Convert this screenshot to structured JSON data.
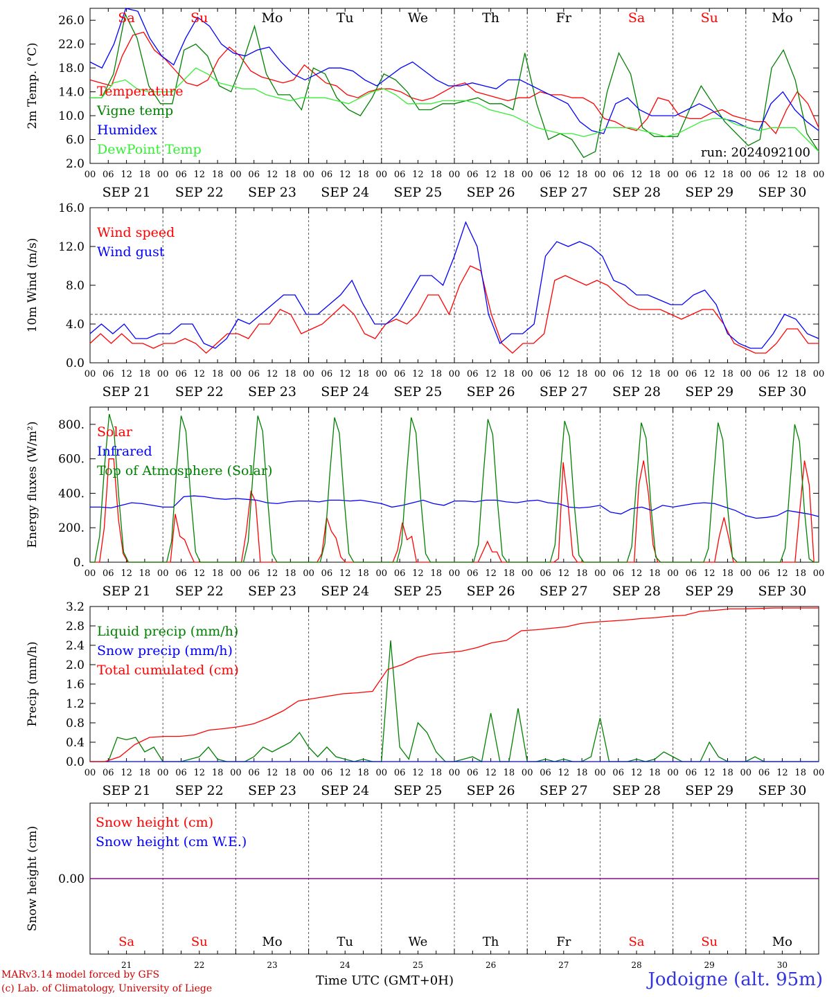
{
  "day_labels": [
    "SEP 21",
    "SEP 22",
    "SEP 23",
    "SEP 24",
    "SEP 25",
    "SEP 26",
    "SEP 27",
    "SEP 28",
    "SEP 29",
    "SEP 30"
  ],
  "weekdays": [
    "Sa",
    "Su",
    "Mo",
    "Tu",
    "We",
    "Th",
    "Fr",
    "Sa",
    "Su",
    "Mo"
  ],
  "weekend_flags": [
    true,
    true,
    false,
    false,
    false,
    false,
    false,
    true,
    true,
    false
  ],
  "day_numbers": [
    "21",
    "22",
    "23",
    "24",
    "25",
    "26",
    "27",
    "28",
    "29",
    "30"
  ],
  "hour_ticks": [
    "00",
    "06",
    "12",
    "18"
  ],
  "hour_end": "00",
  "xlabel": "Time UTC (GMT+0H)",
  "credits": [
    "MARv3.14 model forced by GFS",
    "(c) Lab. of Climatology, University of Liege"
  ],
  "station": "Jodoigne (alt. 95m)",
  "colors": {
    "red": "#ff0000",
    "green": "#008000",
    "blue": "#0000ff",
    "lightgreen": "#33ee33",
    "purple": "#800080",
    "grid": "#555555"
  },
  "chart_data": [
    {
      "type": "line",
      "id": "temp",
      "ylabel": "2m Temp. (°C)",
      "ylim": [
        2,
        28
      ],
      "yticks": [
        "2.0",
        "6.0",
        "10.0",
        "14.0",
        "18.0",
        "22.0",
        "26.0"
      ],
      "annotation": "run: 2024092100",
      "x_hours": "0..240 step 6",
      "series": [
        {
          "name": "Temperature",
          "color": "red",
          "values": [
            16,
            15.5,
            15,
            20,
            23.5,
            24,
            21,
            19.5,
            17.5,
            15.5,
            15,
            16,
            19.5,
            21.5,
            20,
            17.5,
            16.5,
            16,
            15.5,
            16,
            18.5,
            17,
            15.5,
            15,
            13.5,
            13,
            14,
            14.5,
            14.5,
            14,
            13,
            12.5,
            13,
            14,
            15,
            15.5,
            14,
            13.5,
            13,
            12.5,
            13,
            13,
            14,
            13.5,
            13.5,
            13,
            13,
            12,
            9.5,
            9,
            8,
            7.5,
            9.5,
            13,
            12.5,
            10,
            9.5,
            9.5,
            10.5,
            11,
            10,
            9.5,
            9,
            9,
            7,
            11,
            14,
            12,
            8
          ]
        },
        {
          "name": "Vigne temp",
          "color": "green",
          "values": [
            13,
            13,
            17,
            27,
            23,
            15,
            12,
            12,
            21,
            22,
            20,
            15,
            14,
            19,
            25,
            17,
            13.5,
            13.5,
            11,
            18,
            17,
            13,
            11,
            10,
            13,
            17,
            16,
            14,
            11,
            11,
            12,
            12,
            12.5,
            13,
            12,
            12,
            11,
            20.5,
            12,
            6,
            7,
            6,
            3,
            4,
            14,
            20.5,
            17,
            8,
            6.5,
            6.5,
            6.5,
            11,
            15,
            12,
            9,
            7,
            5,
            6,
            18,
            21,
            16,
            7,
            4
          ]
        },
        {
          "name": "Humidex",
          "color": "blue",
          "values": [
            19,
            18,
            22,
            28,
            27.5,
            23,
            20,
            18.5,
            23,
            26.5,
            25,
            22,
            20.5,
            20,
            21,
            21.5,
            19,
            17,
            16,
            17,
            18,
            18,
            17.5,
            16,
            15,
            16.5,
            18,
            19,
            17.5,
            16,
            15,
            15,
            15.5,
            15,
            14.5,
            16,
            16,
            15,
            14,
            13,
            12,
            9,
            7.5,
            7,
            12,
            13,
            11,
            10,
            10,
            10,
            11,
            12,
            11,
            9.5,
            9,
            8,
            7.5,
            12,
            14,
            11,
            9,
            7.5
          ]
        },
        {
          "name": "DewPoint Temp",
          "color": "lightgreen",
          "values": [
            13,
            13,
            15.5,
            16,
            14.5,
            14,
            14,
            14,
            16,
            18,
            17,
            15.5,
            15,
            14.5,
            14.5,
            13.5,
            13,
            12.5,
            13,
            13,
            13,
            12.5,
            12,
            13,
            14,
            14.5,
            13.5,
            12,
            12,
            12,
            12.5,
            12.5,
            12.5,
            12,
            11,
            10.5,
            10,
            9,
            8,
            7.5,
            7,
            7,
            6.5,
            7,
            8,
            8,
            8,
            7.5,
            7,
            6.5,
            7,
            8,
            9,
            9.5,
            9.5,
            8.5,
            8,
            7.5,
            8,
            8,
            8,
            6,
            4
          ]
        }
      ]
    },
    {
      "type": "line",
      "id": "wind",
      "ylabel": "10m Wind (m/s)",
      "ylim": [
        0,
        16
      ],
      "yticks": [
        "0.0",
        "4.0",
        "8.0",
        "12.0",
        "16.0"
      ],
      "reference_line": 5,
      "x_hours": "0..240 step 6",
      "series": [
        {
          "name": "Wind speed",
          "color": "red",
          "values": [
            2,
            3,
            2,
            3,
            2,
            2,
            1.5,
            2,
            2,
            2.5,
            2,
            1,
            2,
            3,
            3,
            2.5,
            4,
            4,
            5.5,
            5,
            3,
            3.5,
            4,
            5,
            6,
            5,
            3,
            2.5,
            4,
            4.5,
            4,
            5,
            7,
            7,
            5,
            8,
            10,
            9.5,
            5,
            2,
            1,
            2,
            2,
            3,
            8.5,
            9,
            8.5,
            8,
            8.5,
            8,
            7,
            6,
            5.5,
            5.5,
            5.5,
            5,
            4.5,
            5,
            5.5,
            5.5,
            4,
            2,
            1.5,
            1,
            1,
            2,
            3.5,
            3.5,
            2,
            2
          ]
        },
        {
          "name": "Wind gust",
          "color": "blue",
          "values": [
            3,
            4,
            3,
            4,
            2.5,
            2.5,
            3,
            3,
            4,
            4,
            2,
            1.5,
            2.5,
            4.5,
            4,
            5,
            6,
            7,
            7,
            5,
            5,
            6,
            7,
            8.5,
            6,
            4,
            4,
            5,
            7,
            9,
            9,
            8,
            11,
            14.5,
            12,
            5,
            2,
            3,
            3,
            4,
            11,
            12.5,
            12,
            12.5,
            12,
            11,
            8.5,
            8,
            7,
            7,
            6.5,
            6,
            6,
            7,
            7.5,
            6,
            3,
            2,
            1.5,
            1.5,
            3,
            5,
            4.5,
            3,
            2.5
          ]
        }
      ]
    },
    {
      "type": "line",
      "id": "energy",
      "ylabel": "Energy fluxes (W/m²)",
      "ylim": [
        0,
        900
      ],
      "yticks": [
        "0.",
        "200.",
        "400.",
        "600.",
        "800."
      ],
      "x_hours": "0..240 step 3",
      "series": [
        {
          "name": "Solar",
          "color": "red",
          "values": [
            0,
            0,
            0,
            200,
            600,
            600,
            250,
            50,
            0,
            0,
            0,
            0,
            0,
            0,
            0,
            0,
            0,
            0,
            280,
            150,
            130,
            60,
            0,
            0,
            0,
            0,
            0,
            0,
            0,
            0,
            0,
            0,
            0,
            170,
            410,
            350,
            0,
            0,
            0,
            0,
            0,
            0,
            0,
            0,
            0,
            0,
            0,
            0,
            0,
            50,
            260,
            180,
            140,
            30,
            0,
            0,
            0,
            0,
            0,
            0,
            0,
            0,
            0,
            0,
            0,
            70,
            230,
            130,
            150,
            0,
            0,
            0,
            0,
            0,
            0,
            0,
            0,
            0,
            0,
            0,
            0,
            0,
            0,
            60,
            120,
            60,
            60,
            0,
            0,
            0,
            0,
            0,
            0,
            0,
            0,
            0,
            0,
            0,
            0,
            20,
            580,
            350,
            40,
            0,
            0,
            0,
            0,
            0,
            0,
            0,
            0,
            0,
            0,
            0,
            0,
            0,
            450,
            590,
            400,
            100,
            0,
            0,
            0,
            0,
            0,
            0,
            0,
            0,
            0,
            0,
            0,
            0,
            0,
            150,
            260,
            140,
            0,
            0,
            0,
            0,
            0,
            0,
            0,
            0,
            0,
            0,
            0,
            0,
            0,
            0,
            300,
            590,
            450,
            0,
            0
          ]
        },
        {
          "name": "Infrared",
          "color": "blue",
          "values": [
            320,
            320,
            315,
            330,
            345,
            340,
            330,
            320,
            320,
            380,
            385,
            380,
            370,
            365,
            370,
            365,
            360,
            345,
            340,
            350,
            355,
            355,
            350,
            360,
            360,
            355,
            360,
            350,
            340,
            320,
            330,
            345,
            360,
            340,
            330,
            355,
            355,
            350,
            360,
            360,
            350,
            345,
            355,
            360,
            345,
            340,
            320,
            315,
            320,
            330,
            290,
            280,
            310,
            320,
            300,
            330,
            320,
            330,
            340,
            345,
            340,
            320,
            300,
            270,
            255,
            260,
            270,
            300,
            290,
            280,
            265
          ]
        },
        {
          "name": "Top of Atmosphere (Solar)",
          "color": "green",
          "values": [
            0,
            0,
            150,
            550,
            860,
            760,
            380,
            60,
            0,
            0,
            0,
            0,
            0,
            0,
            0,
            0,
            0,
            120,
            520,
            850,
            760,
            380,
            60,
            0,
            0,
            0,
            0,
            0,
            0,
            0,
            0,
            0,
            0,
            120,
            520,
            850,
            760,
            380,
            50,
            0,
            0,
            0,
            0,
            0,
            0,
            0,
            0,
            0,
            0,
            110,
            510,
            840,
            750,
            370,
            50,
            0,
            0,
            0,
            0,
            0,
            0,
            0,
            0,
            0,
            0,
            110,
            500,
            840,
            750,
            360,
            50,
            0,
            0,
            0,
            0,
            0,
            0,
            0,
            0,
            0,
            0,
            100,
            490,
            830,
            740,
            350,
            40,
            0,
            0,
            0,
            0,
            0,
            0,
            0,
            0,
            0,
            0,
            100,
            480,
            820,
            730,
            340,
            40,
            0,
            0,
            0,
            0,
            0,
            0,
            0,
            0,
            0,
            0,
            90,
            470,
            810,
            720,
            330,
            30,
            0,
            0,
            0,
            0,
            0,
            0,
            0,
            0,
            0,
            0,
            80,
            460,
            810,
            710,
            320,
            30,
            0,
            0,
            0,
            0,
            0,
            0,
            0,
            0,
            0,
            0,
            80,
            450,
            800,
            700,
            310,
            20,
            0,
            0
          ]
        }
      ]
    },
    {
      "type": "line",
      "id": "precip",
      "ylabel": "Precip (mm/h)",
      "ylim": [
        0,
        3.2
      ],
      "yticks": [
        "0.0",
        "0.4",
        "0.8",
        "1.2",
        "1.6",
        "2.0",
        "2.4",
        "2.8",
        "3.2"
      ],
      "x_hours": "0..240 step 3",
      "series": [
        {
          "name": "Liquid precip (mm/h)",
          "color": "green",
          "values": [
            0,
            0,
            0,
            0.5,
            0.45,
            0.5,
            0.2,
            0.3,
            0,
            0,
            0,
            0.05,
            0.1,
            0.3,
            0.05,
            0,
            0,
            0,
            0.1,
            0.3,
            0.2,
            0.3,
            0.4,
            0.6,
            0.3,
            0.1,
            0.3,
            0.1,
            0.05,
            0,
            0.05,
            0,
            0,
            2.5,
            0.3,
            0.05,
            0.8,
            0.6,
            0.2,
            0,
            0,
            0.05,
            0.1,
            0,
            1,
            0,
            0,
            1.1,
            0,
            0,
            0.05,
            0,
            0.05,
            0,
            0,
            0.1,
            0.9,
            0,
            0,
            0,
            0.05,
            0,
            0.05,
            0.2,
            0.1,
            0,
            0,
            0,
            0.4,
            0.1,
            0,
            0,
            0,
            0.1,
            0,
            0,
            0,
            0,
            0,
            0,
            0
          ]
        },
        {
          "name": "Snow precip (mm/h)",
          "color": "blue",
          "values": [
            0,
            0
          ]
        },
        {
          "name": "Total cumulated (cm)",
          "color": "red",
          "values": [
            0,
            0,
            0.1,
            0.35,
            0.5,
            0.52,
            0.52,
            0.55,
            0.65,
            0.68,
            0.72,
            0.78,
            0.9,
            1.05,
            1.25,
            1.3,
            1.35,
            1.4,
            1.42,
            1.45,
            1.9,
            2.0,
            2.15,
            2.22,
            2.25,
            2.28,
            2.35,
            2.45,
            2.5,
            2.7,
            2.72,
            2.75,
            2.78,
            2.85,
            2.88,
            2.9,
            2.92,
            2.95,
            2.97,
            3.0,
            3.02,
            3.1,
            3.12,
            3.15,
            3.15,
            3.16,
            3.17,
            3.17,
            3.17,
            3.17
          ]
        }
      ]
    },
    {
      "type": "line",
      "id": "snow",
      "ylabel": "Snow height (cm)",
      "ylim": [
        -1,
        1
      ],
      "yticks": [
        "0.00"
      ],
      "x_hours": "0..240",
      "series": [
        {
          "name": "Snow height (cm)",
          "color": "red",
          "values": [
            0,
            0
          ]
        },
        {
          "name": "Snow height (cm W.E.)",
          "color": "blue",
          "values": [
            0,
            0
          ]
        }
      ]
    }
  ]
}
